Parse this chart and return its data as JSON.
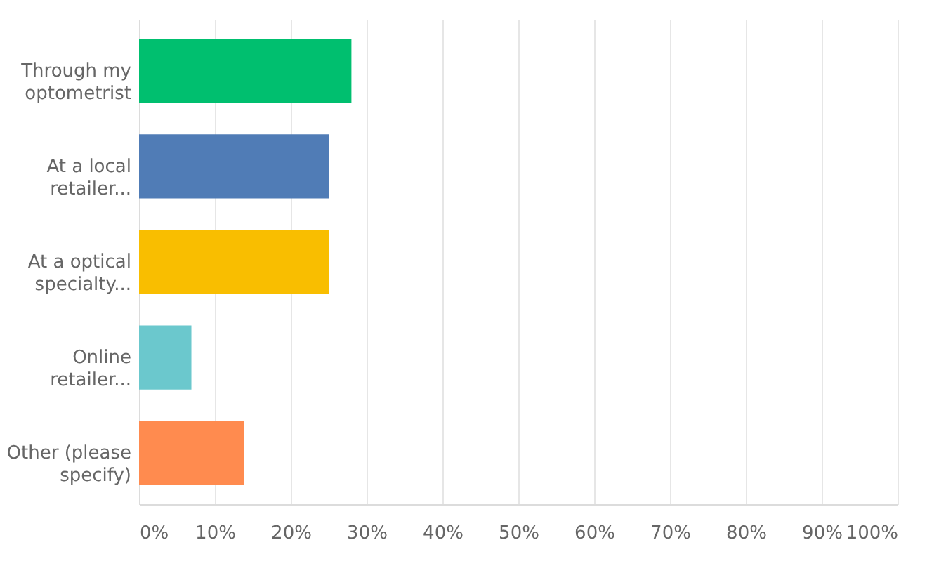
{
  "chart_data": {
    "type": "bar",
    "orientation": "horizontal",
    "categories": [
      "Through my optometrist",
      "At a local retailer...",
      "At a optical specialty...",
      "Online retailer...",
      "Other (please specify)"
    ],
    "values": [
      28.0,
      25.0,
      25.0,
      6.9,
      13.8
    ],
    "colors": [
      "#00bf6f",
      "#507cb6",
      "#f9be00",
      "#6bc8cd",
      "#ff8b4f"
    ],
    "xlim": [
      0,
      100
    ],
    "xticks": [
      {
        "value": 0,
        "label": "0%"
      },
      {
        "value": 10,
        "label": "10%"
      },
      {
        "value": 20,
        "label": "20%"
      },
      {
        "value": 30,
        "label": "30%"
      },
      {
        "value": 40,
        "label": "40%"
      },
      {
        "value": 50,
        "label": "50%"
      },
      {
        "value": 60,
        "label": "60%"
      },
      {
        "value": 70,
        "label": "70%"
      },
      {
        "value": 80,
        "label": "80%"
      },
      {
        "value": 90,
        "label": "90%"
      },
      {
        "value": 100,
        "label": "100%"
      }
    ],
    "grid": "x"
  }
}
